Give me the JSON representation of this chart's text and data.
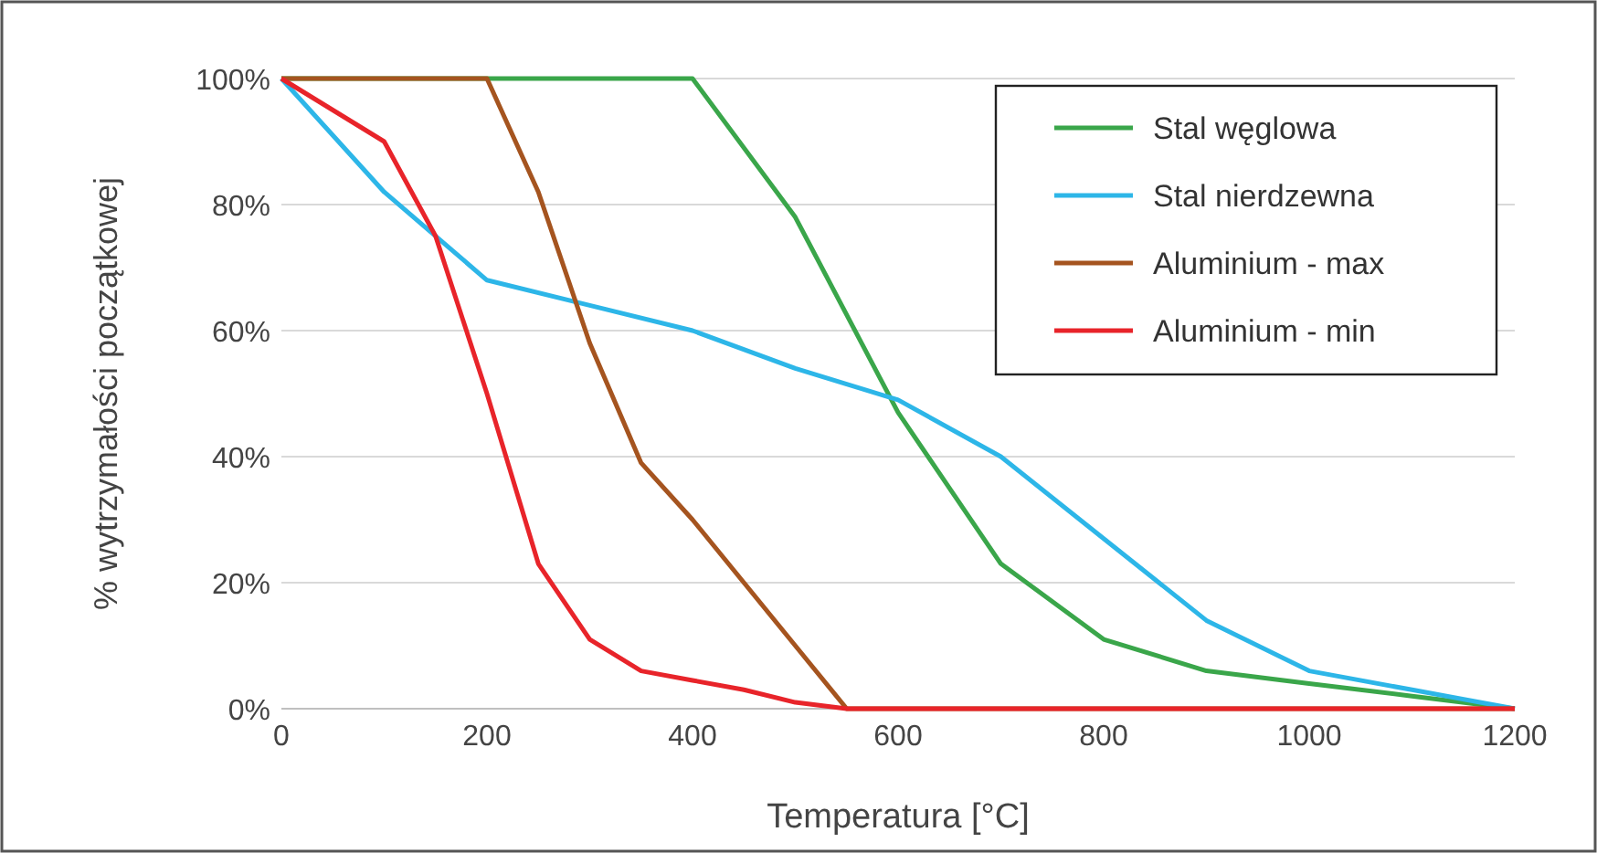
{
  "chart_data": {
    "type": "line",
    "xlabel": "Temperatura [°C]",
    "ylabel": "% wytrzymałości początkowej",
    "xlim": [
      0,
      1200
    ],
    "xticks": [
      0,
      200,
      400,
      600,
      800,
      1000,
      1200
    ],
    "ylim": [
      0,
      100
    ],
    "yticks": [
      {
        "value": 0,
        "label": "0%"
      },
      {
        "value": 20,
        "label": "20%"
      },
      {
        "value": 40,
        "label": "40%"
      },
      {
        "value": 60,
        "label": "60%"
      },
      {
        "value": 80,
        "label": "80%"
      },
      {
        "value": 100,
        "label": "100%"
      }
    ],
    "grid": "y",
    "legend": "top right",
    "marker": "none",
    "line_style": "solid",
    "series": [
      {
        "name": "Stal węglowa",
        "color": "#3aa64a",
        "x": [
          0,
          200,
          300,
          400,
          500,
          600,
          700,
          800,
          900,
          1000,
          1100,
          1200
        ],
        "values": [
          100,
          100,
          100,
          100,
          78,
          47,
          23,
          11,
          6,
          4,
          2,
          0
        ]
      },
      {
        "name": "Stal nierdzewna",
        "color": "#2db6e8",
        "x": [
          0,
          100,
          200,
          300,
          400,
          500,
          600,
          700,
          800,
          900,
          1000,
          1100,
          1200
        ],
        "values": [
          100,
          82,
          68,
          64,
          60,
          54,
          49,
          40,
          27,
          14,
          6,
          3,
          0
        ]
      },
      {
        "name": "Aluminium - max",
        "color": "#a5541f",
        "x": [
          0,
          200,
          250,
          300,
          350,
          400,
          450,
          500,
          550,
          1200
        ],
        "values": [
          100,
          100,
          82,
          58,
          39,
          30,
          20,
          10,
          0,
          0
        ]
      },
      {
        "name": "Aluminium - min",
        "color": "#e8242a",
        "x": [
          0,
          100,
          150,
          200,
          250,
          300,
          350,
          400,
          450,
          500,
          550,
          1200
        ],
        "values": [
          100,
          90,
          75,
          50,
          23,
          11,
          6,
          4.5,
          3,
          1,
          0,
          0
        ]
      }
    ]
  }
}
